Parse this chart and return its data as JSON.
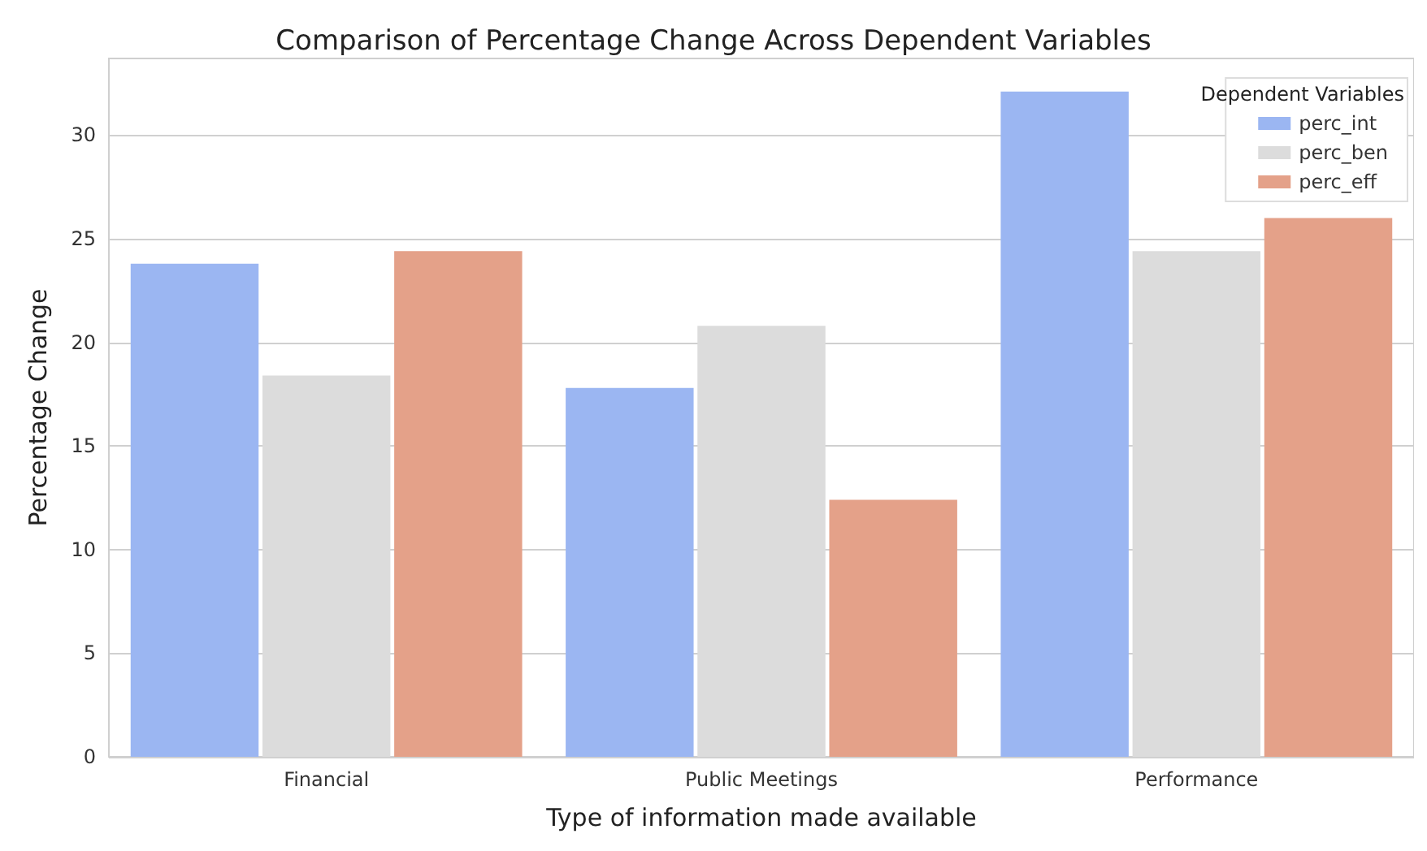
{
  "chart_data": {
    "type": "bar",
    "title": "Comparison of Percentage Change Across Dependent Variables",
    "xlabel": "Type of information made available",
    "ylabel": "Percentage Change",
    "legend_title": "Dependent Variables",
    "categories": [
      "Financial",
      "Public Meetings",
      "Performance"
    ],
    "series": [
      {
        "name": "perc_int",
        "color": "#9bb6f2",
        "values": [
          23.8,
          17.8,
          32.1
        ]
      },
      {
        "name": "perc_ben",
        "color": "#dcdcdc",
        "values": [
          18.4,
          20.8,
          24.4
        ]
      },
      {
        "name": "perc_eff",
        "color": "#e4a189",
        "values": [
          24.4,
          12.4,
          26.0
        ]
      }
    ],
    "ylim": [
      0,
      33.7
    ],
    "yticks": [
      0,
      5,
      10,
      15,
      20,
      25,
      30
    ],
    "grid": "y",
    "legend": "top right"
  }
}
